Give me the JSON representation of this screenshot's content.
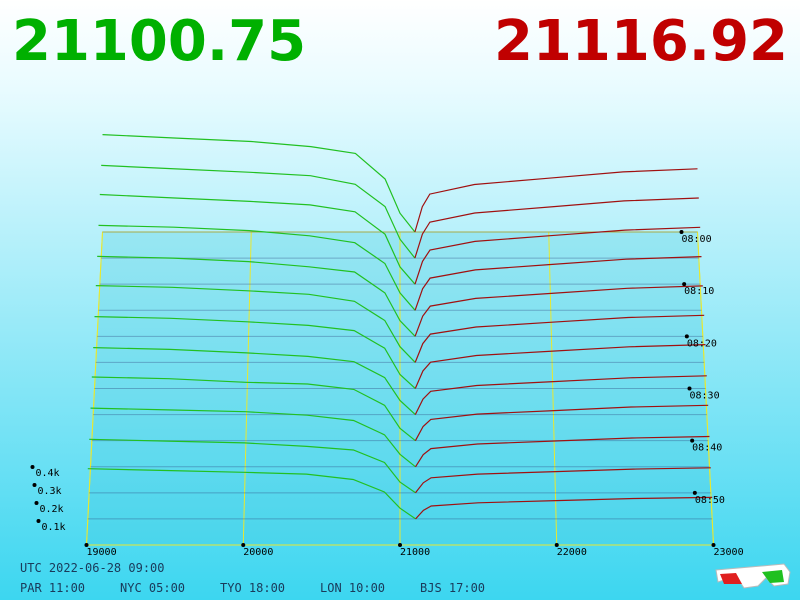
{
  "chart_data": {
    "type": "depth3d",
    "bid_price": 21100.75,
    "ask_price": 21116.92,
    "bid_color": "#00b000",
    "ask_color": "#c00000",
    "bid_line_color": "#22c022",
    "ask_line_color": "#a01010",
    "floor_color": "#e8e830",
    "xlim": [
      19000,
      23000
    ],
    "xticks": [
      19000,
      20000,
      21000,
      22000,
      23000
    ],
    "tlim": [
      0,
      60
    ],
    "tticks": [
      {
        "value": 0,
        "label": "08:00"
      },
      {
        "value": 10,
        "label": "08:10"
      },
      {
        "value": 20,
        "label": "08:20"
      },
      {
        "value": 30,
        "label": "08:30"
      },
      {
        "value": 40,
        "label": "08:40"
      },
      {
        "value": 50,
        "label": "08:50"
      }
    ],
    "zticks": [
      {
        "value": 100,
        "label": "0.1k"
      },
      {
        "value": 200,
        "label": "0.2k"
      },
      {
        "value": 300,
        "label": "0.3k"
      },
      {
        "value": 400,
        "label": "0.4k"
      }
    ],
    "bid_prices": [
      19000,
      19500,
      20000,
      20400,
      20700,
      20900,
      21000,
      21100
    ],
    "ask_prices": [
      21100,
      21150,
      21200,
      21500,
      22000,
      22500,
      23000
    ],
    "rows": [
      {
        "t": 0,
        "bid": [
          570,
          550,
          530,
          500,
          460,
          310,
          110,
          0
        ],
        "ask": [
          0,
          148,
          222,
          278,
          315,
          352,
          370
        ]
      },
      {
        "t": 5,
        "bid": [
          540,
          520,
          500,
          480,
          430,
          300,
          110,
          0
        ],
        "ask": [
          0,
          140,
          210,
          263,
          298,
          333,
          350
        ]
      },
      {
        "t": 10,
        "bid": [
          520,
          500,
          480,
          460,
          420,
          290,
          100,
          0
        ],
        "ask": [
          0,
          132,
          198,
          248,
          281,
          314,
          330
        ]
      },
      {
        "t": 15,
        "bid": [
          490,
          480,
          460,
          430,
          390,
          270,
          100,
          0
        ],
        "ask": [
          0,
          124,
          186,
          233,
          264,
          295,
          310
        ]
      },
      {
        "t": 20,
        "bid": [
          460,
          450,
          430,
          400,
          370,
          250,
          90,
          0
        ],
        "ask": [
          0,
          116,
          174,
          218,
          247,
          276,
          290
        ]
      },
      {
        "t": 25,
        "bid": [
          440,
          430,
          410,
          390,
          350,
          240,
          90,
          0
        ],
        "ask": [
          0,
          108,
          162,
          203,
          230,
          257,
          270
        ]
      },
      {
        "t": 30,
        "bid": [
          410,
          400,
          380,
          360,
          330,
          230,
          80,
          0
        ],
        "ask": [
          0,
          100,
          150,
          188,
          213,
          238,
          250
        ]
      },
      {
        "t": 35,
        "bid": [
          380,
          370,
          350,
          330,
          300,
          210,
          80,
          0
        ],
        "ask": [
          0,
          88,
          132,
          165,
          187,
          209,
          220
        ]
      },
      {
        "t": 40,
        "bid": [
          360,
          350,
          330,
          320,
          290,
          200,
          70,
          0
        ],
        "ask": [
          0,
          80,
          120,
          150,
          170,
          190,
          200
        ]
      },
      {
        "t": 45,
        "bid": [
          330,
          320,
          310,
          290,
          260,
          180,
          70,
          0
        ],
        "ask": [
          0,
          68,
          102,
          128,
          145,
          162,
          170
        ]
      },
      {
        "t": 50,
        "bid": [
          300,
          290,
          280,
          260,
          240,
          170,
          60,
          0
        ],
        "ask": [
          0,
          56,
          84,
          105,
          119,
          133,
          140
        ]
      },
      {
        "t": 55,
        "bid": [
          280,
          270,
          260,
          250,
          220,
          150,
          60,
          0
        ],
        "ask": [
          0,
          48,
          72,
          90,
          102,
          114,
          120
        ]
      }
    ]
  },
  "clock": {
    "utc": "UTC 2022-06-28 09:00",
    "zones": [
      "PAR 11:00",
      "NYC 05:00",
      "TYO 18:00",
      "LON 10:00",
      "BJS 17:00"
    ]
  }
}
